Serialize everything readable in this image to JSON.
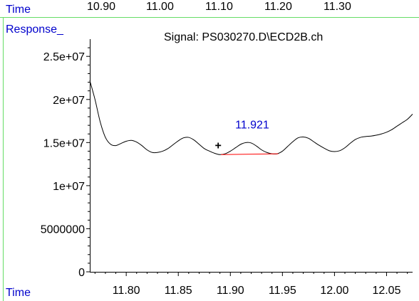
{
  "top_axis": {
    "label": "Time",
    "ticks": [
      "10.90",
      "11.00",
      "11.10",
      "11.20",
      "11.30"
    ]
  },
  "panel": {
    "ylabel": "Response_",
    "title": "Signal: PS030270.D\\ECD2B.ch",
    "xlabel": "Time"
  },
  "colors": {
    "border": "#66dd66",
    "axis_text": "#0000cc",
    "trace": "#000000",
    "baseline": "#ff0000",
    "peak_label": "#0000cc"
  },
  "chart_data": {
    "type": "line",
    "title": "Signal: PS030270.D\\ECD2B.ch",
    "xlabel": "Time",
    "ylabel": "Response_",
    "xlim": [
      11.765,
      12.075
    ],
    "ylim": [
      0,
      27000000
    ],
    "x_ticks": [
      11.8,
      11.85,
      11.9,
      11.95,
      12.0,
      12.05
    ],
    "x_tick_labels": [
      "11.80",
      "11.85",
      "11.90",
      "11.95",
      "12.00",
      "12.05"
    ],
    "y_ticks": [
      0,
      5000000,
      10000000,
      15000000,
      20000000,
      25000000
    ],
    "y_tick_labels": [
      "0",
      "5000000",
      "1e+07",
      "1.5e+07",
      "2e+07",
      "2.5e+07"
    ],
    "series": [
      {
        "points": [
          [
            11.765,
            22200000
          ],
          [
            11.77,
            20000000
          ],
          [
            11.775,
            17400000
          ],
          [
            11.78,
            15600000
          ],
          [
            11.785,
            14800000
          ],
          [
            11.79,
            14650000
          ],
          [
            11.795,
            14900000
          ],
          [
            11.8,
            15150000
          ],
          [
            11.805,
            15250000
          ],
          [
            11.81,
            15050000
          ],
          [
            11.815,
            14650000
          ],
          [
            11.82,
            14150000
          ],
          [
            11.825,
            13850000
          ],
          [
            11.83,
            13850000
          ],
          [
            11.835,
            14000000
          ],
          [
            11.84,
            14300000
          ],
          [
            11.845,
            14750000
          ],
          [
            11.85,
            15200000
          ],
          [
            11.855,
            15550000
          ],
          [
            11.86,
            15600000
          ],
          [
            11.865,
            15300000
          ],
          [
            11.87,
            14800000
          ],
          [
            11.875,
            14300000
          ],
          [
            11.88,
            14000000
          ],
          [
            11.885,
            13750000
          ],
          [
            11.89,
            13600000
          ],
          [
            11.895,
            13700000
          ],
          [
            11.9,
            14000000
          ],
          [
            11.905,
            14400000
          ],
          [
            11.91,
            14800000
          ],
          [
            11.915,
            15000000
          ],
          [
            11.92,
            14950000
          ],
          [
            11.925,
            14600000
          ],
          [
            11.93,
            14150000
          ],
          [
            11.935,
            13850000
          ],
          [
            11.94,
            13700000
          ],
          [
            11.945,
            13700000
          ],
          [
            11.95,
            14000000
          ],
          [
            11.955,
            14550000
          ],
          [
            11.96,
            15100000
          ],
          [
            11.965,
            15550000
          ],
          [
            11.97,
            15650000
          ],
          [
            11.975,
            15500000
          ],
          [
            11.98,
            15100000
          ],
          [
            11.985,
            14700000
          ],
          [
            11.99,
            14350000
          ],
          [
            11.995,
            14050000
          ],
          [
            12.0,
            13950000
          ],
          [
            12.005,
            14050000
          ],
          [
            12.01,
            14400000
          ],
          [
            12.015,
            14900000
          ],
          [
            12.02,
            15350000
          ],
          [
            12.025,
            15600000
          ],
          [
            12.03,
            15700000
          ],
          [
            12.035,
            15750000
          ],
          [
            12.04,
            15850000
          ],
          [
            12.045,
            16000000
          ],
          [
            12.05,
            16200000
          ],
          [
            12.055,
            16500000
          ],
          [
            12.06,
            16900000
          ],
          [
            12.065,
            17300000
          ],
          [
            12.07,
            17700000
          ],
          [
            12.075,
            18300000
          ]
        ]
      }
    ],
    "peak_annotation": {
      "label": "11.921",
      "retention_time": 11.921,
      "apex_response": 15000000,
      "baseline_start": [
        11.891,
        13600000
      ],
      "baseline_end": [
        11.946,
        13700000
      ],
      "start_marker": "+"
    },
    "grid": false,
    "legend": "none"
  }
}
